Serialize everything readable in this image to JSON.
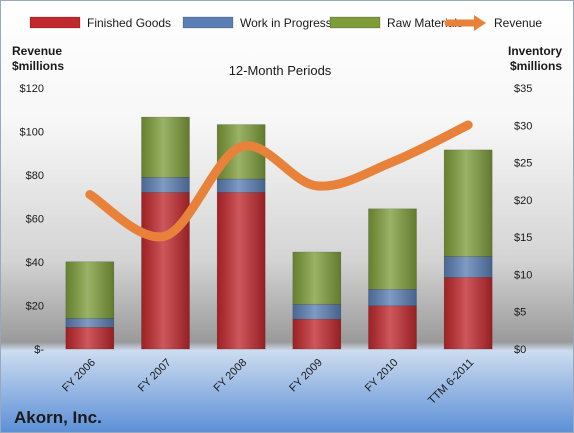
{
  "chart_data": {
    "type": "bar",
    "title": "12-Month Periods",
    "company": "Akorn, Inc.",
    "categories": [
      "FY 2006",
      "FY 2007",
      "FY 2008",
      "FY 2009",
      "FY 2010",
      "TTM 6-2011"
    ],
    "left_axis": {
      "label_line1": "Revenue",
      "label_line2": "$millions",
      "ylim": [
        0,
        120
      ],
      "ticks": [
        0,
        20,
        40,
        60,
        80,
        100,
        120
      ],
      "tick_labels": [
        "$-",
        "$20",
        "$40",
        "$60",
        "$80",
        "$100",
        "$120"
      ]
    },
    "right_axis": {
      "label_line1": "Inventory",
      "label_line2": "$millions",
      "ylim": [
        0,
        35
      ],
      "ticks": [
        0,
        5,
        10,
        15,
        20,
        25,
        30,
        35
      ],
      "tick_labels": [
        "$0",
        "$5",
        "$10",
        "$15",
        "$20",
        "$25",
        "$30",
        "$35"
      ]
    },
    "stacked_series": [
      {
        "name": "Finished Goods",
        "axis": "right",
        "color": "#c0282d",
        "values": [
          2.9,
          21.0,
          21.0,
          4.0,
          5.8,
          9.6
        ]
      },
      {
        "name": "Work in Progress",
        "axis": "right",
        "color": "#5b7fb4",
        "values": [
          1.2,
          2.0,
          1.8,
          2.0,
          2.2,
          2.8
        ]
      },
      {
        "name": "Raw Materials",
        "axis": "right",
        "color": "#7e9d3a",
        "values": [
          7.6,
          8.1,
          7.3,
          7.0,
          10.8,
          14.3
        ]
      }
    ],
    "line_series": {
      "name": "Revenue",
      "axis": "left",
      "color": "#e8823a",
      "values": [
        71,
        52,
        93,
        75,
        86,
        103
      ]
    },
    "legend_position": "top",
    "grid": false
  }
}
